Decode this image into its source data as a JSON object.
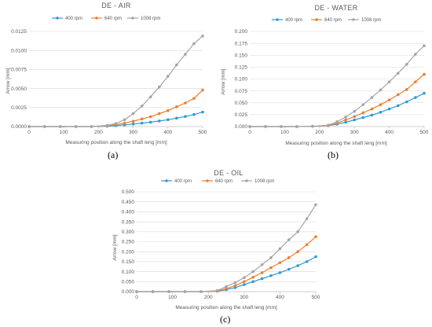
{
  "colors": {
    "s400": "#2e9bd6",
    "s640": "#ef7e2e",
    "s1008": "#a5a5a5",
    "grid": "#d9d9d9",
    "axis": "#bfbfbf",
    "text": "#595959"
  },
  "chart_data": [
    {
      "type": "line",
      "title": "DE - AIR",
      "xlabel": "Measuring position along the shaft leng [mm]",
      "ylabel": "Arrow [mm]",
      "caption": "(a)",
      "xlim": [
        0,
        500
      ],
      "ylim": [
        0,
        0.0125
      ],
      "xticks": [
        "0",
        "100",
        "200",
        "300",
        "400",
        "500"
      ],
      "yticks": [
        "0.0000",
        "0.0025",
        "0.0050",
        "0.0075",
        "0.0100",
        "0.0125"
      ],
      "legend": "top",
      "grid": true,
      "x": [
        0,
        45,
        90,
        135,
        180,
        225,
        250,
        275,
        300,
        325,
        350,
        375,
        400,
        425,
        450,
        475,
        500
      ],
      "series": [
        {
          "name": "400 rpm",
          "values": [
            0,
            0,
            0,
            0,
            0,
            5e-05,
            0.00012,
            0.00022,
            0.00033,
            0.00045,
            0.00058,
            0.00073,
            0.0009,
            0.0011,
            0.00132,
            0.00158,
            0.0019
          ]
        },
        {
          "name": "640 rpm",
          "values": [
            0,
            0,
            0,
            0,
            0,
            0.0001,
            0.00025,
            0.00045,
            0.0007,
            0.001,
            0.0013,
            0.0017,
            0.0021,
            0.0026,
            0.0031,
            0.0037,
            0.0048
          ]
        },
        {
          "name": "1008 rpm",
          "values": [
            0,
            0,
            0,
            0,
            0,
            0.00015,
            0.0004,
            0.0009,
            0.0017,
            0.0027,
            0.0039,
            0.0052,
            0.0066,
            0.0081,
            0.0095,
            0.0109,
            0.0119
          ]
        }
      ]
    },
    {
      "type": "line",
      "title": "DE - WATER",
      "xlabel": "Measuring position along the shaft leng [mm]",
      "ylabel": "Arrow [mm]",
      "caption": "(b)",
      "xlim": [
        0,
        500
      ],
      "ylim": [
        0,
        0.2
      ],
      "xticks": [
        "0",
        "100",
        "200",
        "300",
        "400",
        "500"
      ],
      "yticks": [
        "0.000",
        "0.025",
        "0.050",
        "0.075",
        "0.100",
        "0.125",
        "0.150",
        "0.175",
        "0.200"
      ],
      "legend": "top",
      "grid": true,
      "x": [
        0,
        45,
        90,
        135,
        180,
        225,
        250,
        275,
        300,
        325,
        350,
        375,
        400,
        425,
        450,
        475,
        500
      ],
      "series": [
        {
          "name": "400 rpm",
          "values": [
            0,
            0,
            0,
            0,
            0.0005,
            0.002,
            0.005,
            0.009,
            0.014,
            0.019,
            0.024,
            0.03,
            0.037,
            0.044,
            0.052,
            0.061,
            0.07
          ]
        },
        {
          "name": "640 rpm",
          "values": [
            0,
            0,
            0,
            0,
            0.0005,
            0.002,
            0.007,
            0.014,
            0.021,
            0.029,
            0.037,
            0.046,
            0.056,
            0.067,
            0.078,
            0.094,
            0.11
          ]
        },
        {
          "name": "1008 rpm",
          "values": [
            0,
            0,
            0,
            0,
            0.0005,
            0.003,
            0.01,
            0.02,
            0.032,
            0.046,
            0.061,
            0.077,
            0.094,
            0.112,
            0.131,
            0.152,
            0.17
          ]
        }
      ]
    },
    {
      "type": "line",
      "title": "DE - OIL",
      "xlabel": "Measuring position along the shaft leng  [mm]",
      "ylabel": "Arrow [mm]",
      "caption": "(c)",
      "xlim": [
        0,
        500
      ],
      "ylim": [
        0,
        0.5
      ],
      "xticks": [
        "0",
        "100",
        "200",
        "300",
        "400",
        "500"
      ],
      "yticks": [
        "0.000",
        "0.050",
        "0.100",
        "0.150",
        "0.200",
        "0.250",
        "0.300",
        "0.350",
        "0.400",
        "0.450",
        "0.500"
      ],
      "legend": "top",
      "grid": true,
      "x": [
        0,
        45,
        90,
        135,
        180,
        225,
        250,
        275,
        300,
        325,
        350,
        375,
        400,
        425,
        450,
        475,
        500
      ],
      "series": [
        {
          "name": "400 rpm",
          "values": [
            0,
            0,
            0,
            0,
            0,
            0.002,
            0.01,
            0.02,
            0.035,
            0.05,
            0.065,
            0.08,
            0.095,
            0.112,
            0.13,
            0.15,
            0.175
          ]
        },
        {
          "name": "640 rpm",
          "values": [
            0,
            0,
            0,
            0,
            0,
            0.003,
            0.015,
            0.03,
            0.05,
            0.072,
            0.095,
            0.12,
            0.145,
            0.17,
            0.2,
            0.235,
            0.275
          ]
        },
        {
          "name": "1008 rpm",
          "values": [
            0,
            0,
            0,
            0,
            0,
            0.005,
            0.025,
            0.045,
            0.07,
            0.1,
            0.135,
            0.17,
            0.215,
            0.26,
            0.3,
            0.365,
            0.435
          ]
        }
      ]
    }
  ]
}
